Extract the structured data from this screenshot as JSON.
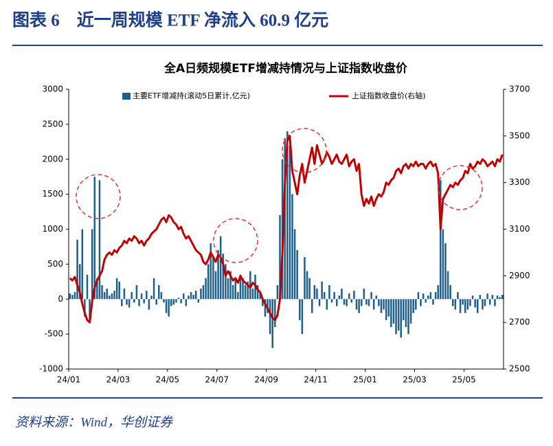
{
  "header": {
    "title": "图表 6　近一周规模 ETF 净流入 60.9 亿元"
  },
  "chart_data": {
    "type": "combo",
    "title": "全A日频规模ETF增减持情况与上证指数收盘价",
    "categories": [
      "24/01",
      null,
      null,
      null,
      null,
      null,
      null,
      null,
      null,
      null,
      null,
      null,
      null,
      null,
      null,
      null,
      null,
      null,
      null,
      null,
      "24/03",
      null,
      null,
      null,
      null,
      null,
      null,
      null,
      null,
      null,
      null,
      null,
      null,
      null,
      null,
      null,
      null,
      null,
      null,
      null,
      "24/05",
      null,
      null,
      null,
      null,
      null,
      null,
      null,
      null,
      null,
      null,
      null,
      null,
      null,
      null,
      null,
      null,
      null,
      null,
      null,
      "24/07",
      null,
      null,
      null,
      null,
      null,
      null,
      null,
      null,
      null,
      null,
      null,
      null,
      null,
      null,
      null,
      null,
      null,
      null,
      null,
      "24/09",
      null,
      null,
      null,
      null,
      null,
      null,
      null,
      null,
      null,
      null,
      null,
      null,
      null,
      null,
      null,
      null,
      null,
      null,
      null,
      "24/11",
      null,
      null,
      null,
      null,
      null,
      null,
      null,
      null,
      null,
      null,
      null,
      null,
      null,
      null,
      null,
      null,
      null,
      null,
      null,
      "25/01",
      null,
      null,
      null,
      null,
      null,
      null,
      null,
      null,
      null,
      null,
      null,
      null,
      null,
      null,
      null,
      null,
      null,
      null,
      null,
      "25/03",
      null,
      null,
      null,
      null,
      null,
      null,
      null,
      null,
      null,
      null,
      null,
      null,
      null,
      null,
      null,
      null,
      null,
      null,
      null,
      "25/05",
      null,
      null,
      null,
      null,
      null,
      null,
      null,
      null,
      null,
      null,
      null,
      null,
      null,
      null,
      null
    ],
    "series": [
      {
        "name": "主要ETF增减持(滚动5日累计,亿元)",
        "type": "bar",
        "color": "#1f5f8b",
        "values": [
          80,
          60,
          100,
          850,
          500,
          1000,
          -250,
          350,
          -300,
          1000,
          1750,
          300,
          1700,
          200,
          100,
          150,
          50,
          80,
          120,
          300,
          250,
          -100,
          150,
          -80,
          -120,
          100,
          -50,
          200,
          -100,
          80,
          -60,
          120,
          -150,
          50,
          300,
          -80,
          200,
          100,
          -50,
          -200,
          -250,
          -100,
          -80,
          -50,
          20,
          -60,
          80,
          -100,
          50,
          100,
          60,
          120,
          -50,
          150,
          200,
          300,
          500,
          800,
          600,
          400,
          700,
          900,
          650,
          500,
          300,
          400,
          200,
          300,
          100,
          350,
          300,
          200,
          250,
          400,
          150,
          350,
          200,
          100,
          -100,
          -250,
          -200,
          -500,
          -700,
          -400,
          200,
          1200,
          2000,
          2300,
          2400,
          2200,
          1500,
          1000,
          700,
          -300,
          -500,
          600,
          400,
          300,
          -200,
          200,
          150,
          -100,
          250,
          100,
          -150,
          200,
          -50,
          100,
          -100,
          50,
          150,
          -80,
          -100,
          80,
          -50,
          120,
          -150,
          -200,
          -100,
          150,
          -80,
          -100,
          100,
          -150,
          50,
          -100,
          -200,
          -150,
          -300,
          -250,
          -400,
          -350,
          -500,
          -450,
          -550,
          -300,
          -400,
          -500,
          -350,
          -200,
          -150,
          100,
          -100,
          80,
          -50,
          50,
          100,
          -80,
          100,
          200,
          1700,
          1000,
          800,
          400,
          200,
          -100,
          -150,
          100,
          -200,
          -80,
          -200,
          -150,
          -100,
          50,
          -120,
          -200,
          60,
          -150,
          -100,
          80,
          -80,
          60,
          -100,
          50,
          30,
          61
        ]
      },
      {
        "name": "上证指数收盘价(右轴)",
        "type": "line",
        "axis": "y2",
        "color": "#c00000",
        "values": [
          2890,
          2880,
          2895,
          2860,
          2830,
          2780,
          2740,
          2710,
          2700,
          2790,
          2850,
          2880,
          2900,
          2920,
          2970,
          2990,
          3000,
          2990,
          3010,
          3000,
          3020,
          3030,
          3050,
          3040,
          3060,
          3050,
          3070,
          3060,
          3040,
          3050,
          3030,
          3050,
          3060,
          3080,
          3090,
          3100,
          3120,
          3140,
          3150,
          3130,
          3160,
          3150,
          3130,
          3120,
          3100,
          3110,
          3080,
          3060,
          3070,
          3050,
          3030,
          3010,
          3000,
          2990,
          2960,
          2950,
          2970,
          3000,
          2980,
          2960,
          2990,
          2980,
          2950,
          2900,
          2920,
          2900,
          2880,
          2890,
          2870,
          2900,
          2880,
          2870,
          2860,
          2850,
          2870,
          2860,
          2840,
          2830,
          2800,
          2780,
          2760,
          2740,
          2720,
          2710,
          2730,
          2800,
          3000,
          3300,
          3480,
          3500,
          3350,
          3300,
          3250,
          3330,
          3380,
          3300,
          3350,
          3400,
          3450,
          3380,
          3460,
          3420,
          3380,
          3400,
          3430,
          3410,
          3380,
          3400,
          3420,
          3390,
          3380,
          3400,
          3420,
          3370,
          3390,
          3400,
          3350,
          3380,
          3250,
          3200,
          3230,
          3210,
          3240,
          3200,
          3230,
          3250,
          3240,
          3260,
          3300,
          3290,
          3310,
          3320,
          3350,
          3360,
          3340,
          3370,
          3380,
          3360,
          3380,
          3370,
          3390,
          3370,
          3380,
          3380,
          3360,
          3380,
          3390,
          3370,
          3380,
          3340,
          3100,
          3230,
          3250,
          3270,
          3290,
          3280,
          3300,
          3290,
          3310,
          3320,
          3350,
          3340,
          3380,
          3360,
          3370,
          3390,
          3380,
          3400,
          3390,
          3370,
          3380,
          3390,
          3370,
          3400,
          3390,
          3420
        ]
      }
    ],
    "ylim": [
      -1000,
      3000
    ],
    "yticks": [
      -1000,
      -500,
      0,
      500,
      1000,
      1500,
      2000,
      2500,
      3000
    ],
    "y2lim": [
      2500,
      3700
    ],
    "y2ticks": [
      2500,
      2700,
      2900,
      3100,
      3300,
      3500,
      3700
    ],
    "grid": false,
    "legend": "top"
  },
  "source": "资料来源：Wind，华创证券"
}
